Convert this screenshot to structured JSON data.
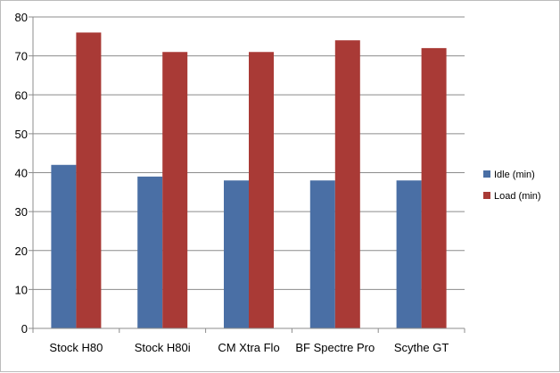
{
  "chart_data": {
    "type": "bar",
    "categories": [
      "Stock H80",
      "Stock H80i",
      "CM Xtra Flo",
      "BF Spectre Pro",
      "Scythe GT"
    ],
    "series": [
      {
        "name": "Idle (min)",
        "values": [
          42,
          39,
          38,
          38,
          38
        ],
        "color": "#4a6fa5"
      },
      {
        "name": "Load (min)",
        "values": [
          76,
          71,
          71,
          74,
          72
        ],
        "color": "#a93a36"
      }
    ],
    "ylim": [
      0,
      80
    ],
    "yticks": [
      0,
      10,
      20,
      30,
      40,
      50,
      60,
      70,
      80
    ],
    "title": "",
    "xlabel": "",
    "ylabel": "",
    "grid": true,
    "legend_position": "right"
  }
}
